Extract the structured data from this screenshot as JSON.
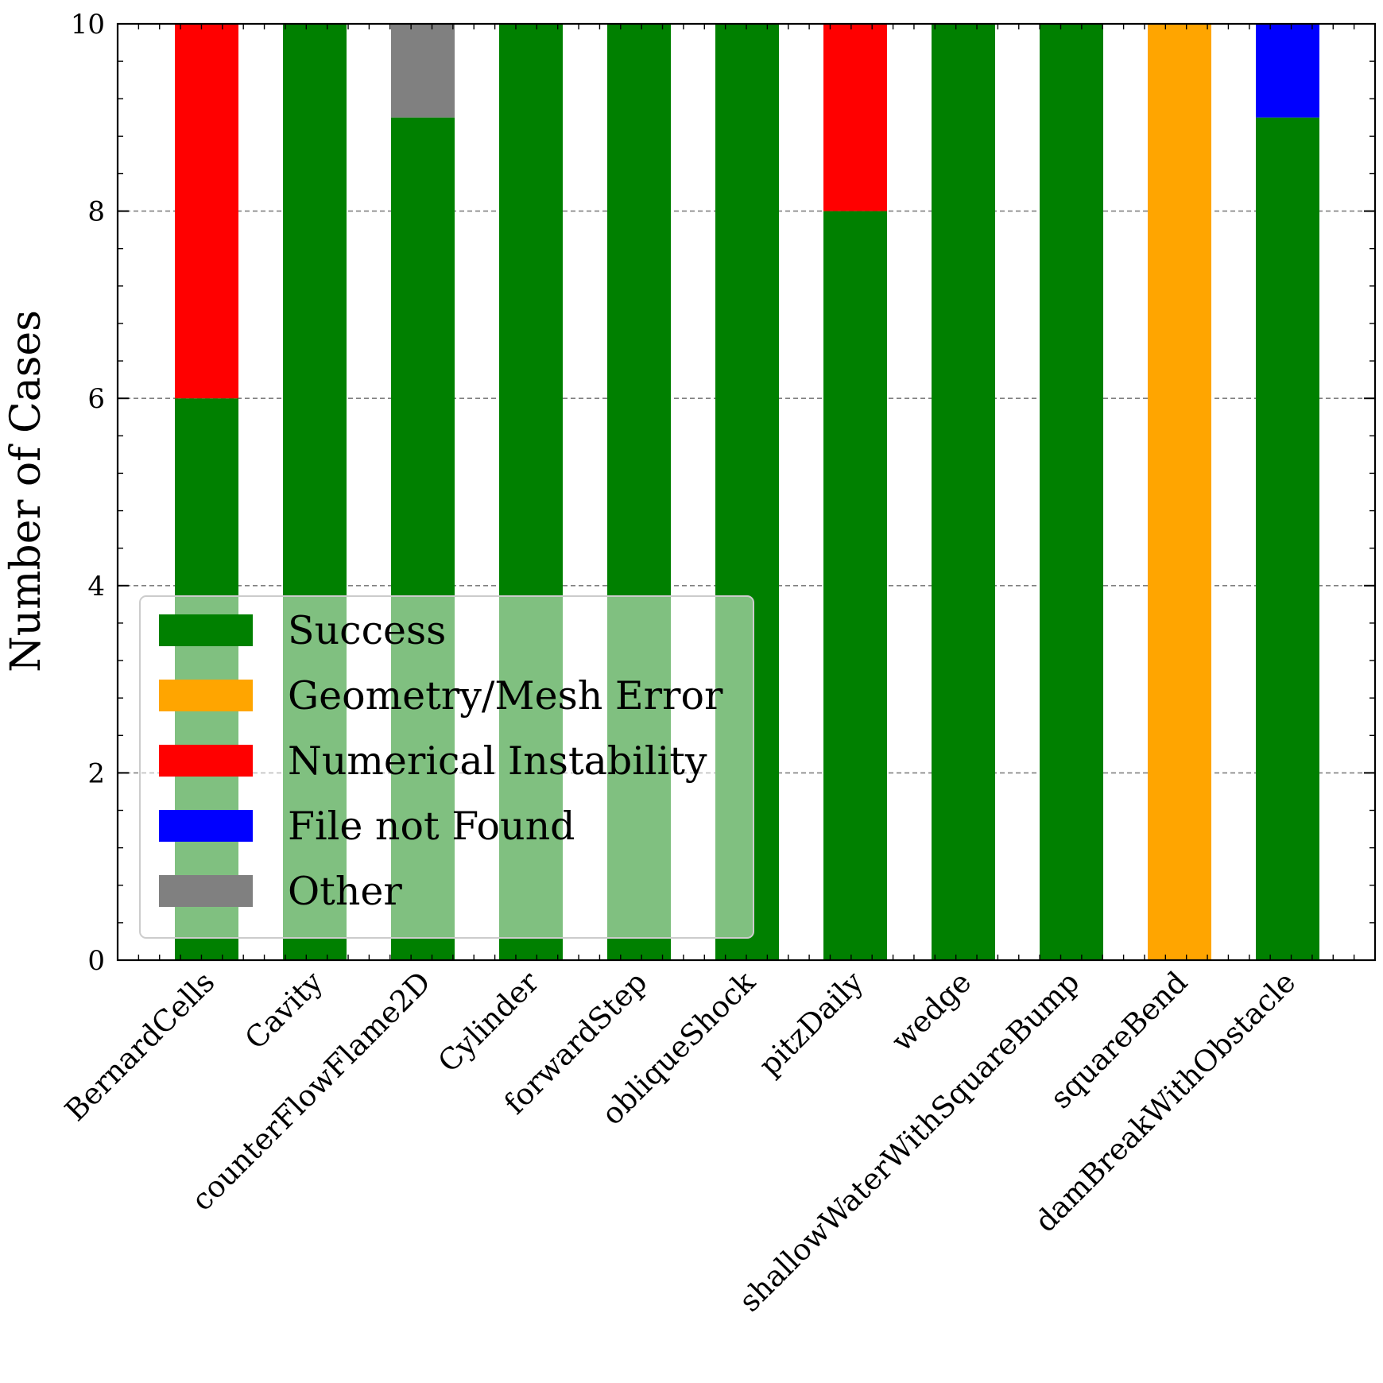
{
  "chart_data": {
    "type": "bar",
    "stacked": true,
    "title": "",
    "xlabel": "",
    "ylabel": "Number of Cases",
    "ylim": [
      0,
      10
    ],
    "yticks": [
      0,
      2,
      4,
      6,
      8,
      10
    ],
    "grid": "y-dashed",
    "legend_position": "lower-left",
    "categories": [
      "BernardCells",
      "Cavity",
      "counterFlowFlame2D",
      "Cylinder",
      "forwardStep",
      "obliqueShock",
      "pitzDaily",
      "wedge",
      "shallowWaterWithSquareBump",
      "squareBend",
      "damBreakWithObstacle"
    ],
    "series": [
      {
        "name": "Success",
        "color": "#008000",
        "values": [
          6,
          10,
          9,
          10,
          10,
          10,
          8,
          10,
          10,
          0,
          9
        ]
      },
      {
        "name": "Geometry/Mesh Error",
        "color": "#ffa500",
        "values": [
          0,
          0,
          0,
          0,
          0,
          0,
          0,
          0,
          0,
          10,
          0
        ]
      },
      {
        "name": "Numerical Instability",
        "color": "#ff0000",
        "values": [
          4,
          0,
          0,
          0,
          0,
          0,
          2,
          0,
          0,
          0,
          0
        ]
      },
      {
        "name": "File not Found",
        "color": "#0000ff",
        "values": [
          0,
          0,
          0,
          0,
          0,
          0,
          0,
          0,
          0,
          0,
          1
        ]
      },
      {
        "name": "Other",
        "color": "#808080",
        "values": [
          0,
          0,
          1,
          0,
          0,
          0,
          0,
          0,
          0,
          0,
          0
        ]
      }
    ]
  }
}
